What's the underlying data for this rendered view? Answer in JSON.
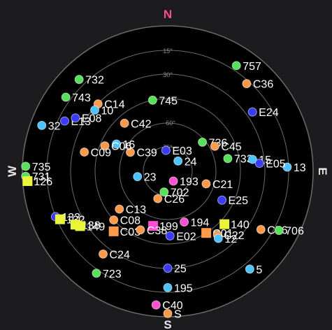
{
  "colors": {
    "background": "#1c1c1e",
    "plot": "#000000",
    "grid": "#6b6b6b",
    "cardinal_n": "#ff4f8b",
    "cardinal": "#e6e6e6",
    "systems": {
      "gps": "#ff9a4a",
      "glonass": "#57e05a",
      "galileo": "#3b3bff",
      "beidou": "#4cc3ff",
      "qzss": "#ff4fd2",
      "sbas": "#e8f53a"
    }
  },
  "cardinals": {
    "n": "N",
    "e": "E",
    "s": "S",
    "w": "W"
  },
  "ring_labels": [
    "15°",
    "30°",
    "45°",
    "60°",
    "75°"
  ],
  "satellites": [
    {
      "id": "743",
      "system": "glonass",
      "marker": "circle",
      "az": 306,
      "el": 12
    },
    {
      "id": "732",
      "system": "glonass",
      "marker": "circle",
      "az": 316,
      "el": 11
    },
    {
      "id": "757",
      "system": "glonass",
      "marker": "circle",
      "az": 33,
      "el": 12
    },
    {
      "id": "C36",
      "system": "gps",
      "marker": "circle",
      "az": 42,
      "el": 17
    },
    {
      "id": "C14",
      "system": "gps",
      "marker": "circle",
      "az": 314,
      "el": 30
    },
    {
      "id": "745",
      "system": "glonass",
      "marker": "circle",
      "az": 348,
      "el": 45
    },
    {
      "id": "E13",
      "system": "galileo",
      "marker": "circle",
      "az": 296,
      "el": 19
    },
    {
      "id": "E08",
      "system": "galileo",
      "marker": "circle",
      "az": 300,
      "el": 24
    },
    {
      "id": "10",
      "system": "beidou",
      "marker": "circle",
      "az": 310,
      "el": 31
    },
    {
      "id": "E24",
      "system": "galileo",
      "marker": "circle",
      "az": 55,
      "el": 26
    },
    {
      "id": "32",
      "system": "beidou",
      "marker": "circle",
      "az": 290,
      "el": 7
    },
    {
      "id": "C42",
      "system": "gps",
      "marker": "circle",
      "az": 318,
      "el": 50
    },
    {
      "id": "736",
      "system": "glonass",
      "marker": "circle",
      "az": 50,
      "el": 62
    },
    {
      "id": "C45",
      "system": "gps",
      "marker": "circle",
      "az": 62,
      "el": 57
    },
    {
      "id": "E03",
      "system": "galileo",
      "marker": "circle",
      "az": 355,
      "el": 77
    },
    {
      "id": "C39",
      "system": "gps",
      "marker": "circle",
      "az": 297,
      "el": 64
    },
    {
      "id": "24",
      "system": "beidou",
      "marker": "circle",
      "az": 45,
      "el": 81
    },
    {
      "id": "16",
      "system": "beidou",
      "marker": "circle",
      "az": 298,
      "el": 54
    },
    {
      "id": "C06",
      "system": "gps",
      "marker": "circle",
      "az": 292,
      "el": 48
    },
    {
      "id": "C09",
      "system": "gps",
      "marker": "circle",
      "az": 283,
      "el": 37
    },
    {
      "id": "733",
      "system": "glonass",
      "marker": "circle",
      "az": 78,
      "el": 52
    },
    {
      "id": "15",
      "system": "beidou",
      "marker": "circle",
      "az": 82,
      "el": 37
    },
    {
      "id": "13",
      "system": "beidou",
      "marker": "circle",
      "az": 88,
      "el": 16
    },
    {
      "id": "E05",
      "system": "galileo",
      "marker": "circle",
      "az": 85,
      "el": 33
    },
    {
      "id": "23",
      "system": "beidou",
      "marker": "circle",
      "az": 260,
      "el": 71
    },
    {
      "id": "193",
      "system": "qzss",
      "marker": "circle",
      "az": 150,
      "el": 83
    },
    {
      "id": "C21",
      "system": "gps",
      "marker": "circle",
      "az": 108,
      "el": 65
    },
    {
      "id": "735",
      "system": "glonass",
      "marker": "circle",
      "az": 272,
      "el": 2
    },
    {
      "id": "731",
      "system": "glonass",
      "marker": "circle",
      "az": 268,
      "el": 2
    },
    {
      "id": "126",
      "system": "sbas",
      "marker": "square",
      "az": 266,
      "el": 3
    },
    {
      "id": "E25",
      "system": "galileo",
      "marker": "circle",
      "az": 118,
      "el": 52
    },
    {
      "id": "C13",
      "system": "gps",
      "marker": "circle",
      "az": 232,
      "el": 52
    },
    {
      "id": "C26",
      "system": "gps",
      "marker": "circle",
      "az": 200,
      "el": 72
    },
    {
      "id": "702",
      "system": "glonass",
      "marker": "circle",
      "az": 190,
      "el": 77
    },
    {
      "id": "C08",
      "system": "gps",
      "marker": "circle",
      "az": 228,
      "el": 45
    },
    {
      "id": "133",
      "system": "galileo",
      "marker": "circle",
      "az": 248,
      "el": 15
    },
    {
      "id": "132",
      "system": "sbas",
      "marker": "square",
      "az": 246,
      "el": 17
    },
    {
      "id": "138",
      "system": "sbas",
      "marker": "square",
      "az": 240,
      "el": 24
    },
    {
      "id": "149",
      "system": "sbas",
      "marker": "square",
      "az": 238,
      "el": 26
    },
    {
      "id": "C03",
      "system": "gps",
      "marker": "square",
      "az": 222,
      "el": 40
    },
    {
      "id": "199",
      "system": "qzss",
      "marker": "square",
      "az": 195,
      "el": 55
    },
    {
      "id": "C38",
      "system": "gps",
      "marker": "circle",
      "az": 205,
      "el": 50
    },
    {
      "id": "194",
      "system": "qzss",
      "marker": "circle",
      "az": 162,
      "el": 57
    },
    {
      "id": "C01",
      "system": "gps",
      "marker": "square",
      "az": 148,
      "el": 45
    },
    {
      "id": "140",
      "system": "sbas",
      "marker": "square",
      "az": 133,
      "el": 42
    },
    {
      "id": "C22",
      "system": "gps",
      "marker": "circle",
      "az": 142,
      "el": 40
    },
    {
      "id": "E02",
      "system": "galileo",
      "marker": "circle",
      "az": 178,
      "el": 50
    },
    {
      "id": "12",
      "system": "beidou",
      "marker": "circle",
      "az": 143,
      "el": 38
    },
    {
      "id": "C56",
      "system": "gps",
      "marker": "circle",
      "az": 122,
      "el": 22
    },
    {
      "id": "706",
      "system": "glonass",
      "marker": "circle",
      "az": 118,
      "el": 12
    },
    {
      "id": "C24",
      "system": "gps",
      "marker": "circle",
      "az": 218,
      "el": 25
    },
    {
      "id": "723",
      "system": "glonass",
      "marker": "circle",
      "az": 215,
      "el": 13
    },
    {
      "id": "25",
      "system": "galileo",
      "marker": "circle",
      "az": 180,
      "el": 30
    },
    {
      "id": "5",
      "system": "beidou",
      "marker": "circle",
      "az": 140,
      "el": 11
    },
    {
      "id": "195",
      "system": "beidou",
      "marker": "circle",
      "az": 180,
      "el": 18
    },
    {
      "id": "C40",
      "system": "qzss",
      "marker": "circle",
      "az": 185,
      "el": 7
    },
    {
      "id": "S",
      "system": "gps",
      "marker": "circle",
      "az": 180,
      "el": 2
    }
  ]
}
